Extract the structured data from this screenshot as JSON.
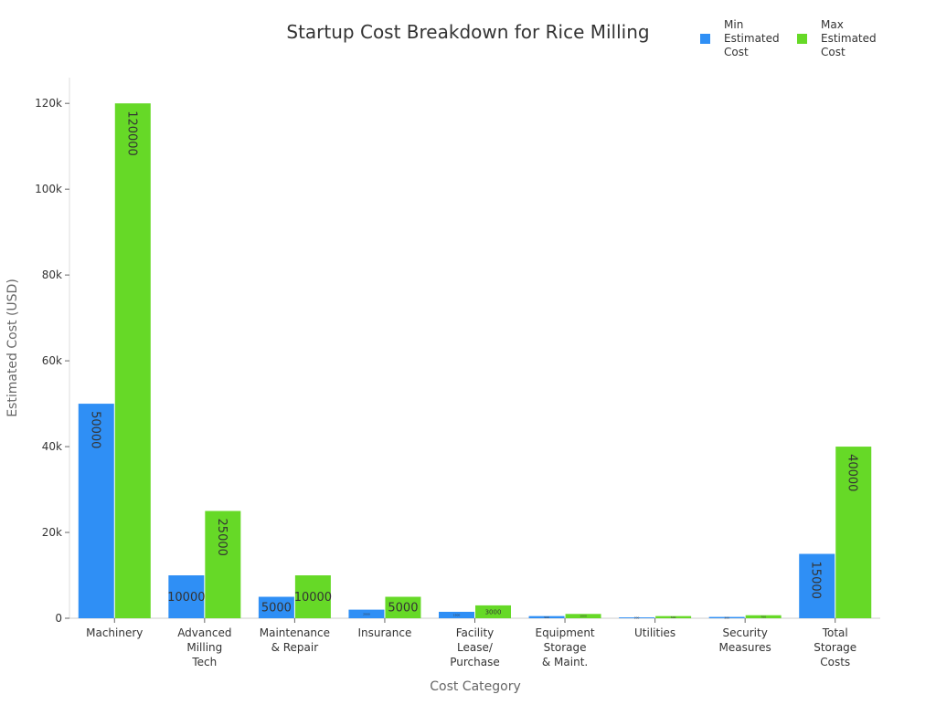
{
  "chart_data": {
    "type": "bar",
    "title": "Startup Cost Breakdown for Rice Milling",
    "xlabel": "Cost Category",
    "ylabel": "Estimated Cost (USD)",
    "ylim": [
      0,
      126000
    ],
    "yticks": [
      0,
      20000,
      40000,
      60000,
      80000,
      100000,
      120000
    ],
    "ytick_labels": [
      "0",
      "20k",
      "40k",
      "60k",
      "80k",
      "100k",
      "120k"
    ],
    "grid": false,
    "legend_position": "top-right",
    "categories": [
      [
        "Machinery"
      ],
      [
        "Advanced",
        "Milling",
        "Tech"
      ],
      [
        "Maintenance",
        "& Repair"
      ],
      [
        "Insurance"
      ],
      [
        "Facility",
        "Lease/",
        "Purchase"
      ],
      [
        "Equipment",
        "Storage",
        "& Maint."
      ],
      [
        "Utilities"
      ],
      [
        "Security",
        "Measures"
      ],
      [
        "Total",
        "Storage",
        "Costs"
      ]
    ],
    "series": [
      {
        "name": "Min Estimated Cost",
        "legend_lines": [
          "Min",
          "Estimated",
          "Cost"
        ],
        "color": "#2f8ff5",
        "values": [
          50000,
          10000,
          5000,
          2000,
          1500,
          500,
          200,
          300,
          15000
        ]
      },
      {
        "name": "Max Estimated Cost",
        "legend_lines": [
          "Max",
          "Estimated",
          "Cost"
        ],
        "color": "#66d927",
        "values": [
          120000,
          25000,
          10000,
          5000,
          3000,
          1000,
          500,
          700,
          40000
        ]
      }
    ]
  }
}
